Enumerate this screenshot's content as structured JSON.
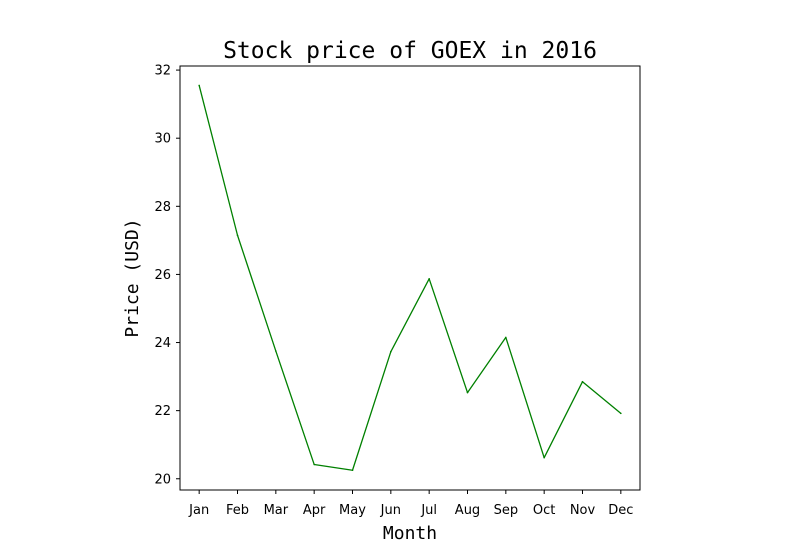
{
  "chart_data": {
    "type": "line",
    "title": "Stock price of GOEX in 2016",
    "xlabel": "Month",
    "ylabel": "Price (USD)",
    "categories": [
      "Jan",
      "Feb",
      "Mar",
      "Apr",
      "May",
      "Jun",
      "Jul",
      "Aug",
      "Sep",
      "Oct",
      "Nov",
      "Dec"
    ],
    "series": [
      {
        "values": [
          31.55,
          27.15,
          23.75,
          20.42,
          20.25,
          23.73,
          25.87,
          22.53,
          24.15,
          20.62,
          22.85,
          21.92
        ],
        "color": "#008000"
      }
    ],
    "ylim": [
      19.67,
      32.12
    ],
    "yticks": [
      20,
      22,
      24,
      26,
      28,
      30,
      32
    ],
    "ytick_labels": [
      "20",
      "22",
      "24",
      "26",
      "28",
      "30",
      "32"
    ],
    "grid": false,
    "legend": false
  }
}
